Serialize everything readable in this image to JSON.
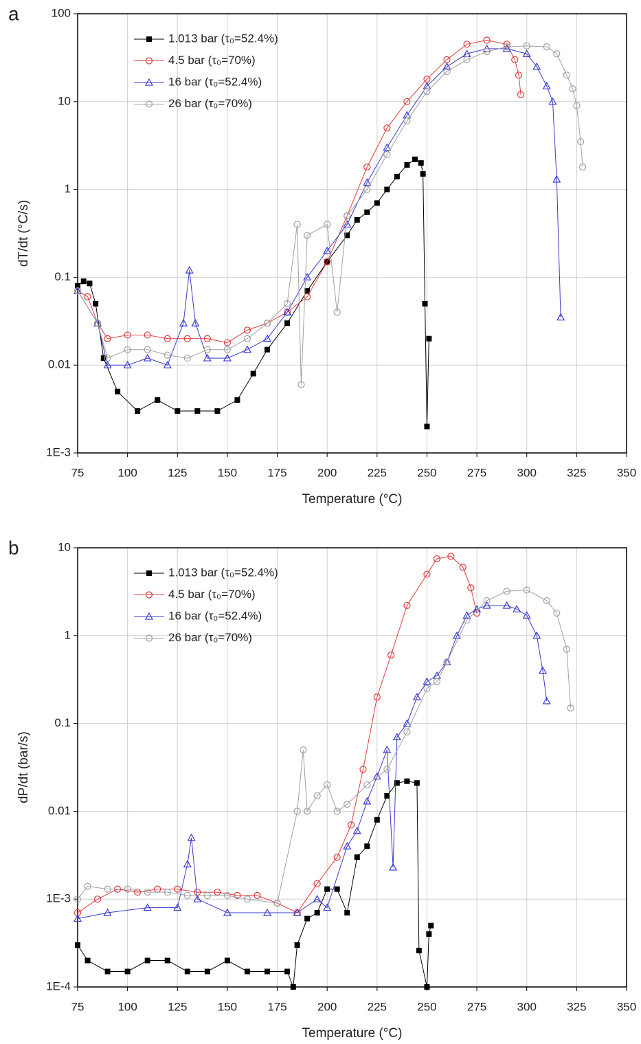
{
  "chart_data": [
    {
      "type": "line",
      "panel_label": "a",
      "x_label": "Temperature (°C)",
      "y_label": "dT/dt (°C/s)",
      "log_y": true,
      "grid": true,
      "legend": "upper left",
      "xlim": [
        75,
        350
      ],
      "xticks": [
        75,
        100,
        125,
        150,
        175,
        200,
        225,
        250,
        275,
        300,
        325,
        350
      ],
      "ylim": [
        0.001,
        100
      ],
      "yticks": [
        {
          "value": 0.001,
          "label": "1E-3"
        },
        0.01,
        0.1,
        1,
        10,
        100
      ],
      "series": [
        {
          "name": "1.013 bar (τ₀=52.4%)",
          "color": "#000000",
          "marker": "square",
          "x": [
            75,
            78,
            81,
            84,
            88,
            95,
            105,
            115,
            125,
            135,
            145,
            155,
            163,
            170,
            180,
            190,
            200,
            210,
            215,
            220,
            225,
            230,
            235,
            240,
            244,
            247,
            248,
            249,
            250,
            251
          ],
          "values": [
            0.08,
            0.09,
            0.085,
            0.05,
            0.012,
            0.005,
            0.003,
            0.004,
            0.003,
            0.003,
            0.003,
            0.004,
            0.008,
            0.015,
            0.03,
            0.07,
            0.15,
            0.3,
            0.45,
            0.55,
            0.7,
            1.0,
            1.4,
            1.9,
            2.2,
            2.0,
            1.5,
            0.05,
            0.002,
            0.02
          ]
        },
        {
          "name": "4.5 bar (τ₀=70%)",
          "color": "#e03a3a",
          "marker": "circle",
          "x": [
            75,
            80,
            85,
            90,
            100,
            110,
            120,
            130,
            140,
            150,
            160,
            170,
            180,
            190,
            200,
            210,
            220,
            230,
            240,
            250,
            260,
            270,
            280,
            290,
            294,
            296,
            297
          ],
          "values": [
            0.07,
            0.06,
            0.03,
            0.02,
            0.022,
            0.022,
            0.02,
            0.02,
            0.02,
            0.018,
            0.025,
            0.03,
            0.04,
            0.06,
            0.15,
            0.5,
            1.8,
            5,
            10,
            18,
            30,
            45,
            50,
            45,
            30,
            20,
            12
          ]
        },
        {
          "name": "16 bar (τ₀=52.4%)",
          "color": "#3a3ad0",
          "marker": "triangle",
          "x": [
            75,
            85,
            90,
            100,
            110,
            120,
            128,
            131,
            134,
            140,
            150,
            160,
            170,
            180,
            190,
            200,
            210,
            220,
            230,
            240,
            250,
            260,
            270,
            280,
            290,
            300,
            305,
            310,
            313,
            315,
            317
          ],
          "values": [
            0.07,
            0.03,
            0.01,
            0.01,
            0.012,
            0.01,
            0.03,
            0.12,
            0.03,
            0.012,
            0.012,
            0.015,
            0.02,
            0.04,
            0.1,
            0.2,
            0.4,
            1.2,
            3,
            7,
            15,
            25,
            35,
            40,
            40,
            35,
            25,
            15,
            10,
            1.3,
            0.035
          ]
        },
        {
          "name": "26 bar (τ₀=70%)",
          "color": "#a0a0a0",
          "marker": "circle",
          "x": [
            75,
            85,
            90,
            100,
            110,
            120,
            130,
            140,
            150,
            160,
            170,
            180,
            185,
            187,
            190,
            200,
            205,
            210,
            220,
            230,
            240,
            250,
            260,
            270,
            280,
            290,
            300,
            310,
            315,
            320,
            323,
            325,
            327,
            328
          ],
          "values": [
            0.07,
            0.03,
            0.012,
            0.015,
            0.015,
            0.013,
            0.012,
            0.015,
            0.015,
            0.02,
            0.03,
            0.05,
            0.4,
            0.006,
            0.3,
            0.4,
            0.04,
            0.5,
            1.0,
            2.5,
            6,
            13,
            22,
            30,
            37,
            42,
            43,
            42,
            35,
            20,
            14,
            9,
            3.5,
            1.8
          ]
        }
      ]
    },
    {
      "type": "line",
      "panel_label": "b",
      "x_label": "Temperature (°C)",
      "y_label": "dP/dt (bar/s)",
      "log_y": true,
      "grid": true,
      "legend": "upper left",
      "xlim": [
        75,
        350
      ],
      "xticks": [
        75,
        100,
        125,
        150,
        175,
        200,
        225,
        250,
        275,
        300,
        325,
        350
      ],
      "ylim": [
        0.0001,
        10
      ],
      "yticks": [
        {
          "value": 0.0001,
          "label": "1E-4"
        },
        {
          "value": 0.001,
          "label": "1E-3"
        },
        0.01,
        0.1,
        1,
        10
      ],
      "series": [
        {
          "name": "1.013 bar (τ₀=52.4%)",
          "color": "#000000",
          "marker": "square",
          "x": [
            75,
            80,
            90,
            100,
            110,
            120,
            130,
            140,
            150,
            160,
            170,
            180,
            183,
            185,
            190,
            195,
            200,
            205,
            210,
            215,
            220,
            225,
            230,
            235,
            240,
            245,
            246,
            250,
            251,
            252
          ],
          "values": [
            0.0003,
            0.0002,
            0.00015,
            0.00015,
            0.0002,
            0.0002,
            0.00015,
            0.00015,
            0.0002,
            0.00015,
            0.00015,
            0.00015,
            0.0001,
            0.0003,
            0.0006,
            0.0007,
            0.0013,
            0.0013,
            0.0007,
            0.003,
            0.004,
            0.008,
            0.015,
            0.021,
            0.022,
            0.021,
            0.00026,
            0.0001,
            0.0004,
            0.0005
          ]
        },
        {
          "name": "4.5 bar (τ₀=70%)",
          "color": "#e03a3a",
          "marker": "circle",
          "x": [
            75,
            85,
            95,
            105,
            115,
            125,
            135,
            145,
            155,
            165,
            175,
            185,
            195,
            205,
            212,
            218,
            225,
            232,
            240,
            250,
            255,
            262,
            268,
            272,
            275
          ],
          "values": [
            0.0007,
            0.001,
            0.0013,
            0.0012,
            0.0013,
            0.0013,
            0.0012,
            0.0012,
            0.0011,
            0.0011,
            0.0009,
            0.0007,
            0.0015,
            0.003,
            0.007,
            0.03,
            0.2,
            0.6,
            2.2,
            5,
            7.5,
            8,
            6,
            3.5,
            1.8
          ]
        },
        {
          "name": "16 bar (τ₀=52.4%)",
          "color": "#3a3ad0",
          "marker": "triangle",
          "x": [
            75,
            90,
            110,
            125,
            130,
            132,
            135,
            150,
            170,
            185,
            195,
            200,
            210,
            215,
            220,
            225,
            230,
            233,
            235,
            240,
            245,
            250,
            255,
            260,
            265,
            270,
            275,
            280,
            290,
            295,
            300,
            305,
            308,
            310
          ],
          "values": [
            0.0006,
            0.0007,
            0.0008,
            0.0008,
            0.0025,
            0.005,
            0.001,
            0.0007,
            0.0007,
            0.0007,
            0.001,
            0.0008,
            0.004,
            0.006,
            0.013,
            0.025,
            0.05,
            0.0023,
            0.07,
            0.1,
            0.2,
            0.3,
            0.35,
            0.5,
            1.0,
            1.7,
            2.0,
            2.2,
            2.2,
            2.0,
            1.7,
            1.0,
            0.4,
            0.18
          ]
        },
        {
          "name": "26 bar (τ₀=70%)",
          "color": "#a0a0a0",
          "marker": "circle",
          "x": [
            75,
            80,
            90,
            100,
            110,
            120,
            130,
            140,
            150,
            160,
            175,
            185,
            188,
            190,
            195,
            200,
            205,
            210,
            220,
            230,
            240,
            250,
            255,
            260,
            270,
            280,
            290,
            300,
            310,
            315,
            320,
            322
          ],
          "values": [
            0.001,
            0.0014,
            0.0013,
            0.0013,
            0.0012,
            0.0012,
            0.0011,
            0.0011,
            0.0011,
            0.001,
            0.0009,
            0.01,
            0.05,
            0.01,
            0.015,
            0.02,
            0.01,
            0.012,
            0.02,
            0.03,
            0.08,
            0.25,
            0.3,
            0.5,
            1.5,
            2.5,
            3.2,
            3.3,
            2.5,
            1.8,
            0.7,
            0.15
          ]
        }
      ]
    }
  ]
}
